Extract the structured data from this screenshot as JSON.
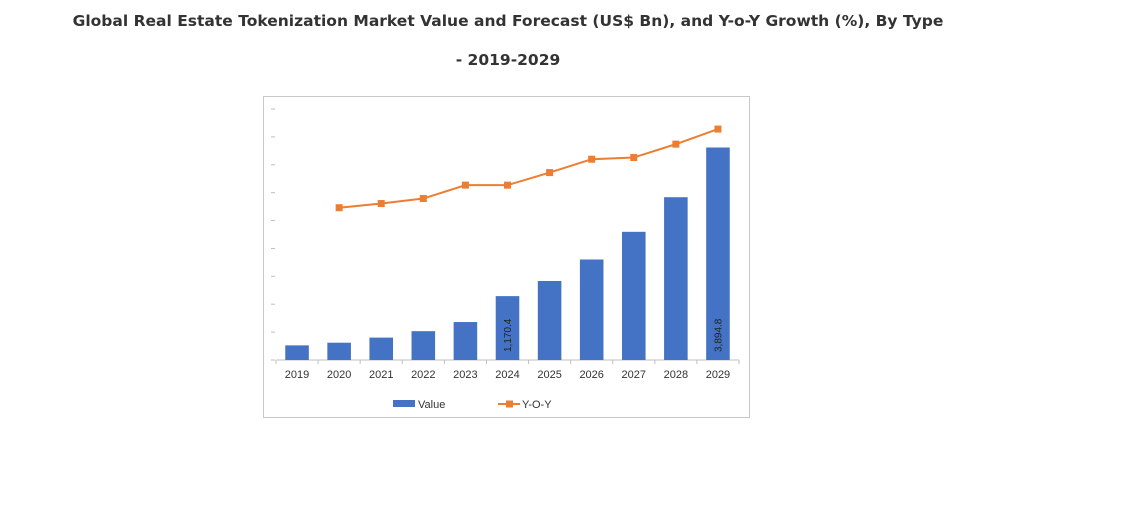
{
  "title": {
    "line1": "Global Real Estate Tokenization Market Value and Forecast (US$ Bn), and Y-o-Y Growth (%), By Type",
    "line2": "- 2019-2029"
  },
  "chart_data": {
    "type": "bar",
    "title": "Global Real Estate Tokenization Market Value and Forecast (US$ Bn), and Y-o-Y Growth (%), By Type - 2019-2029",
    "categories": [
      "2019",
      "2020",
      "2021",
      "2022",
      "2023",
      "2024",
      "2025",
      "2026",
      "2027",
      "2028",
      "2029"
    ],
    "series": [
      {
        "name": "Value",
        "kind": "bar",
        "color": "#4472C4",
        "values": [
          268.1,
          316.8,
          410.3,
          528.1,
          695.7,
          1170.4,
          1447.9,
          1841.8,
          2349.0,
          2983.4,
          3894.8
        ],
        "data_labels": {
          "2024": "1,170.4",
          "2029": "3,894.8"
        }
      },
      {
        "name": "Y-o-Y",
        "kind": "line",
        "color": "#ED7D31",
        "values": [
          null,
          18.2,
          18.7,
          19.3,
          20.9,
          20.9,
          22.4,
          24.0,
          24.2,
          25.8,
          27.6
        ]
      }
    ],
    "bar_ylim": [
      0,
      4600
    ],
    "line_ylim": [
      0,
      30
    ],
    "legend": [
      "Value",
      "Y-O-Y"
    ],
    "legend_position": "bottom"
  }
}
